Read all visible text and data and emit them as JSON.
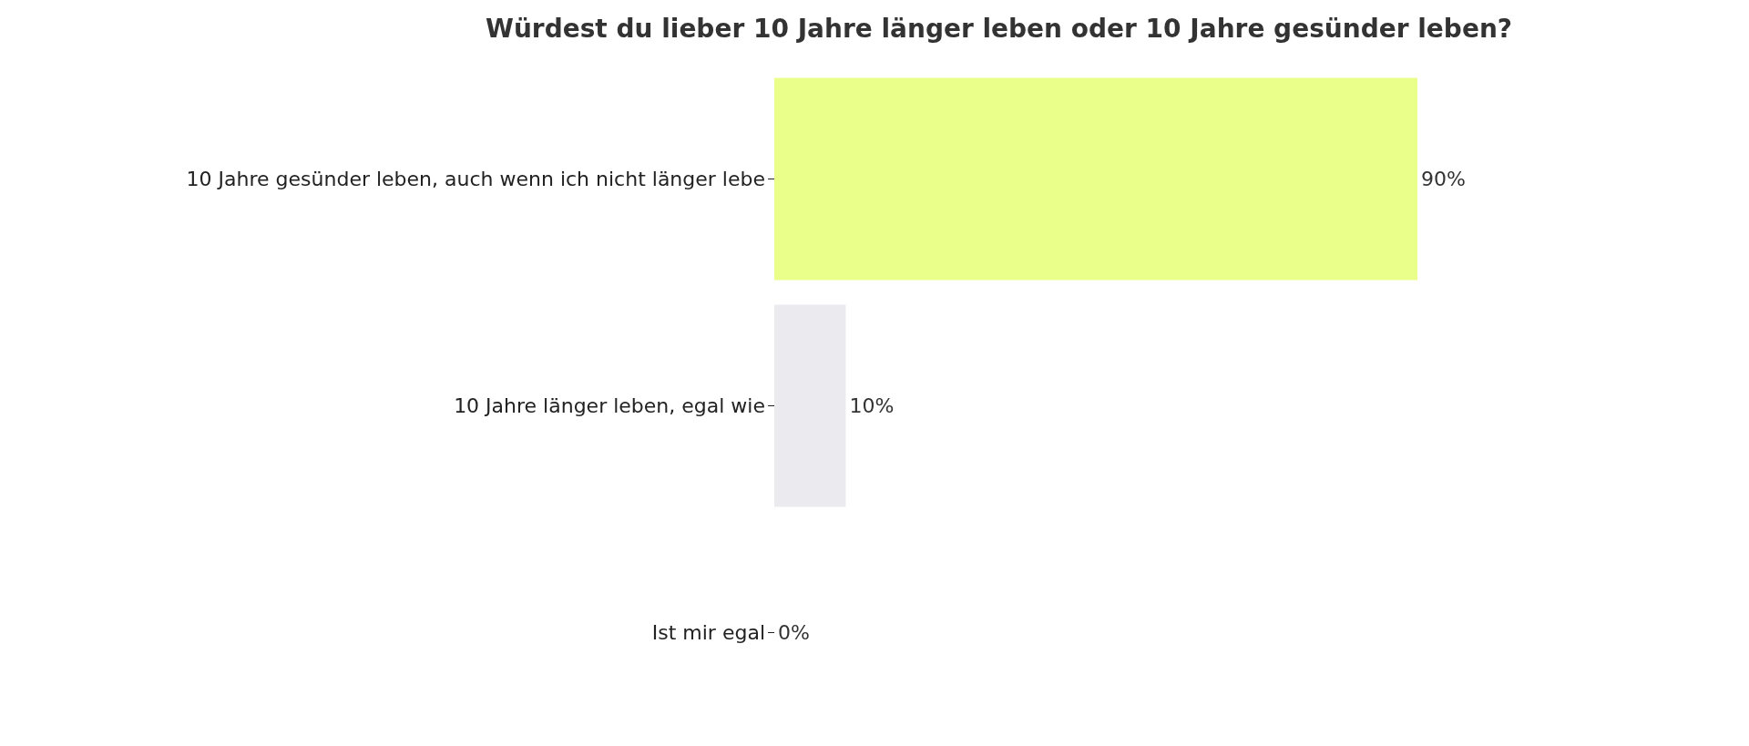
{
  "chart_data": {
    "type": "bar",
    "orientation": "horizontal",
    "title": "Würdest du lieber 10 Jahre länger leben oder 10 Jahre gesünder leben?",
    "categories": [
      "10 Jahre gesünder leben, auch wenn ich nicht länger lebe",
      "10 Jahre länger leben, egal wie",
      "Ist mir egal"
    ],
    "values": [
      90,
      10,
      0
    ],
    "colors": [
      "#e9ff8a",
      "#ebebef",
      "#ebebef"
    ],
    "value_labels": [
      "90%",
      "10%",
      "0%"
    ]
  }
}
